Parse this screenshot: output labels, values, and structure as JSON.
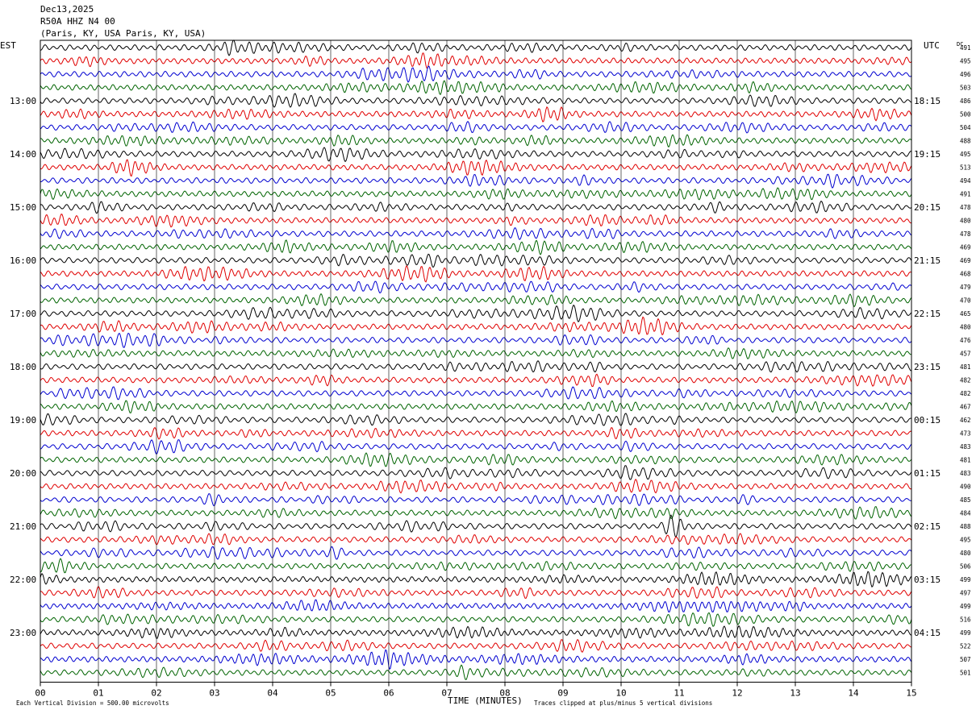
{
  "header": {
    "date": "Dec13,2025",
    "station": "R50A HHZ N4 00",
    "location": "(Paris, KY, USA Paris, KY, USA)"
  },
  "labels": {
    "left_tz": "EST",
    "right_tz": "UTC",
    "dc": "DC"
  },
  "footer": {
    "xlabel": "TIME (MINUTES)",
    "scale_note": "Each Vertical Division =  500.00 microvolts",
    "clip_note": "Traces clipped at plus/minus 5 vertical divisions"
  },
  "colors": {
    "trace_cycle": [
      "#000000",
      "#e00000",
      "#0000d0",
      "#006400"
    ],
    "grid": "#000000",
    "background": "#ffffff"
  },
  "chart_data": {
    "type": "line",
    "title": "",
    "xlabel": "TIME (MINUTES)",
    "xlim": [
      0,
      15
    ],
    "x_ticks": [
      "00",
      "01",
      "02",
      "03",
      "04",
      "05",
      "06",
      "07",
      "08",
      "09",
      "10",
      "11",
      "12",
      "13",
      "14",
      "15"
    ],
    "rows_per_hour": 4,
    "trace_count": 48,
    "left_hour_labels": [
      "13:00",
      "14:00",
      "15:00",
      "16:00",
      "17:00",
      "18:00",
      "19:00",
      "20:00",
      "21:00",
      "22:00",
      "23:00"
    ],
    "right_hour_labels": [
      "18:15",
      "19:15",
      "20:15",
      "21:15",
      "22:15",
      "23:15",
      "00:15",
      "01:15",
      "02:15",
      "03:15",
      "04:15"
    ],
    "dc_offsets": [
      491,
      495,
      496,
      503,
      486,
      500,
      504,
      488,
      495,
      513,
      494,
      491,
      478,
      480,
      478,
      469,
      469,
      468,
      479,
      470,
      465,
      480,
      476,
      457,
      481,
      482,
      482,
      467,
      462,
      473,
      483,
      481,
      483,
      490,
      485,
      484,
      488,
      495,
      480,
      506,
      499,
      497,
      499,
      516,
      499,
      522,
      507,
      501
    ]
  }
}
